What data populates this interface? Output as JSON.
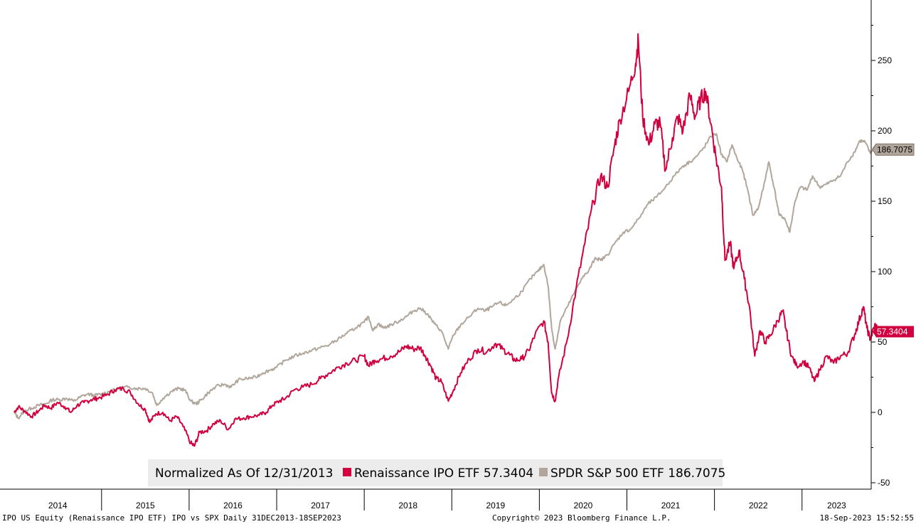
{
  "chart_data": {
    "type": "line",
    "title": "",
    "xlabel": "",
    "ylabel": "",
    "x_range": [
      "2013-12-31",
      "2023-09-18"
    ],
    "ylim": [
      -50,
      280
    ],
    "yticks": [
      -50,
      0,
      50,
      100,
      150,
      200,
      250
    ],
    "year_labels": [
      "2014",
      "2015",
      "2016",
      "2017",
      "2018",
      "2019",
      "2020",
      "2021",
      "2022",
      "2023"
    ],
    "legend": {
      "prefix": "Normalized As Of 12/31/2013",
      "placement": "bottom-center"
    },
    "series": [
      {
        "name": "Renaissance IPO ETF",
        "last_value": "57.3404",
        "color": "#d1003f",
        "points": [
          [
            2014.0,
            0
          ],
          [
            2014.05,
            4
          ],
          [
            2014.12,
            1
          ],
          [
            2014.2,
            -3
          ],
          [
            2014.28,
            1
          ],
          [
            2014.35,
            5
          ],
          [
            2014.42,
            3
          ],
          [
            2014.5,
            7
          ],
          [
            2014.58,
            4
          ],
          [
            2014.65,
            0
          ],
          [
            2014.72,
            5
          ],
          [
            2014.8,
            7
          ],
          [
            2014.88,
            9
          ],
          [
            2014.95,
            10
          ],
          [
            2015.05,
            12
          ],
          [
            2015.15,
            16
          ],
          [
            2015.25,
            17
          ],
          [
            2015.33,
            14
          ],
          [
            2015.42,
            6
          ],
          [
            2015.5,
            2
          ],
          [
            2015.55,
            -7
          ],
          [
            2015.62,
            -1
          ],
          [
            2015.7,
            0
          ],
          [
            2015.78,
            -6
          ],
          [
            2015.86,
            -3
          ],
          [
            2015.93,
            -10
          ],
          [
            2016.02,
            -22
          ],
          [
            2016.06,
            -24
          ],
          [
            2016.12,
            -14
          ],
          [
            2016.2,
            -13
          ],
          [
            2016.28,
            -8
          ],
          [
            2016.36,
            -6
          ],
          [
            2016.45,
            -12
          ],
          [
            2016.52,
            -5
          ],
          [
            2016.62,
            -4
          ],
          [
            2016.7,
            -3
          ],
          [
            2016.8,
            -2
          ],
          [
            2016.88,
            0
          ],
          [
            2016.95,
            5
          ],
          [
            2017.03,
            8
          ],
          [
            2017.1,
            10
          ],
          [
            2017.2,
            16
          ],
          [
            2017.3,
            18
          ],
          [
            2017.4,
            20
          ],
          [
            2017.5,
            24
          ],
          [
            2017.6,
            28
          ],
          [
            2017.7,
            32
          ],
          [
            2017.8,
            35
          ],
          [
            2017.9,
            37
          ],
          [
            2018.0,
            40
          ],
          [
            2018.05,
            33
          ],
          [
            2018.12,
            37
          ],
          [
            2018.2,
            38
          ],
          [
            2018.3,
            40
          ],
          [
            2018.4,
            43
          ],
          [
            2018.48,
            47
          ],
          [
            2018.56,
            45
          ],
          [
            2018.64,
            46
          ],
          [
            2018.7,
            40
          ],
          [
            2018.76,
            33
          ],
          [
            2018.82,
            24
          ],
          [
            2018.88,
            22
          ],
          [
            2018.96,
            8
          ],
          [
            2019.02,
            16
          ],
          [
            2019.1,
            28
          ],
          [
            2019.2,
            38
          ],
          [
            2019.3,
            45
          ],
          [
            2019.4,
            43
          ],
          [
            2019.5,
            49
          ],
          [
            2019.58,
            45
          ],
          [
            2019.66,
            41
          ],
          [
            2019.72,
            37
          ],
          [
            2019.8,
            38
          ],
          [
            2019.88,
            44
          ],
          [
            2019.95,
            55
          ],
          [
            2020.05,
            65
          ],
          [
            2020.1,
            50
          ],
          [
            2020.14,
            14
          ],
          [
            2020.18,
            8
          ],
          [
            2020.22,
            25
          ],
          [
            2020.32,
            52
          ],
          [
            2020.42,
            88
          ],
          [
            2020.52,
            120
          ],
          [
            2020.62,
            150
          ],
          [
            2020.7,
            168
          ],
          [
            2020.78,
            160
          ],
          [
            2020.86,
            190
          ],
          [
            2020.92,
            208
          ],
          [
            2021.02,
            228
          ],
          [
            2021.1,
            248
          ],
          [
            2021.13,
            265
          ],
          [
            2021.18,
            210
          ],
          [
            2021.25,
            190
          ],
          [
            2021.32,
            205
          ],
          [
            2021.38,
            205
          ],
          [
            2021.44,
            172
          ],
          [
            2021.52,
            195
          ],
          [
            2021.58,
            210
          ],
          [
            2021.64,
            200
          ],
          [
            2021.72,
            225
          ],
          [
            2021.78,
            210
          ],
          [
            2021.84,
            222
          ],
          [
            2021.9,
            228
          ],
          [
            2021.96,
            205
          ],
          [
            2022.02,
            180
          ],
          [
            2022.08,
            160
          ],
          [
            2022.12,
            108
          ],
          [
            2022.18,
            120
          ],
          [
            2022.22,
            102
          ],
          [
            2022.28,
            115
          ],
          [
            2022.34,
            95
          ],
          [
            2022.4,
            75
          ],
          [
            2022.46,
            40
          ],
          [
            2022.52,
            58
          ],
          [
            2022.58,
            50
          ],
          [
            2022.64,
            55
          ],
          [
            2022.72,
            65
          ],
          [
            2022.78,
            72
          ],
          [
            2022.82,
            58
          ],
          [
            2022.88,
            40
          ],
          [
            2022.94,
            33
          ],
          [
            2023.02,
            36
          ],
          [
            2023.08,
            32
          ],
          [
            2023.14,
            22
          ],
          [
            2023.2,
            30
          ],
          [
            2023.28,
            40
          ],
          [
            2023.36,
            35
          ],
          [
            2023.44,
            40
          ],
          [
            2023.52,
            42
          ],
          [
            2023.6,
            55
          ],
          [
            2023.65,
            65
          ],
          [
            2023.7,
            75
          ],
          [
            2023.74,
            60
          ],
          [
            2023.78,
            52
          ],
          [
            2023.83,
            62
          ],
          [
            2023.86,
            60
          ],
          [
            2023.88,
            57.34
          ]
        ]
      },
      {
        "name": "SPDR S&P 500 ETF",
        "last_value": "186.7075",
        "color": "#b1a69b",
        "points": [
          [
            2014.0,
            0
          ],
          [
            2014.05,
            -4
          ],
          [
            2014.12,
            1
          ],
          [
            2014.2,
            3
          ],
          [
            2014.28,
            5
          ],
          [
            2014.36,
            6
          ],
          [
            2014.44,
            9
          ],
          [
            2014.52,
            9
          ],
          [
            2014.6,
            10
          ],
          [
            2014.68,
            8
          ],
          [
            2014.76,
            11
          ],
          [
            2014.84,
            13
          ],
          [
            2014.92,
            12
          ],
          [
            2015.0,
            13
          ],
          [
            2015.1,
            15
          ],
          [
            2015.2,
            17
          ],
          [
            2015.3,
            18
          ],
          [
            2015.4,
            17
          ],
          [
            2015.5,
            17
          ],
          [
            2015.58,
            14
          ],
          [
            2015.63,
            5
          ],
          [
            2015.7,
            10
          ],
          [
            2015.8,
            15
          ],
          [
            2015.88,
            17
          ],
          [
            2015.95,
            16
          ],
          [
            2016.02,
            8
          ],
          [
            2016.08,
            6
          ],
          [
            2016.14,
            9
          ],
          [
            2016.22,
            14
          ],
          [
            2016.3,
            18
          ],
          [
            2016.4,
            20
          ],
          [
            2016.48,
            18
          ],
          [
            2016.56,
            23
          ],
          [
            2016.66,
            24
          ],
          [
            2016.76,
            25
          ],
          [
            2016.84,
            28
          ],
          [
            2016.92,
            30
          ],
          [
            2017.0,
            32
          ],
          [
            2017.1,
            37
          ],
          [
            2017.2,
            40
          ],
          [
            2017.3,
            42
          ],
          [
            2017.4,
            44
          ],
          [
            2017.5,
            46
          ],
          [
            2017.6,
            48
          ],
          [
            2017.7,
            52
          ],
          [
            2017.8,
            56
          ],
          [
            2017.9,
            60
          ],
          [
            2018.0,
            64
          ],
          [
            2018.05,
            68
          ],
          [
            2018.1,
            58
          ],
          [
            2018.16,
            63
          ],
          [
            2018.22,
            60
          ],
          [
            2018.3,
            62
          ],
          [
            2018.4,
            65
          ],
          [
            2018.48,
            68
          ],
          [
            2018.56,
            72
          ],
          [
            2018.64,
            74
          ],
          [
            2018.72,
            70
          ],
          [
            2018.8,
            63
          ],
          [
            2018.88,
            58
          ],
          [
            2018.96,
            45
          ],
          [
            2019.02,
            55
          ],
          [
            2019.1,
            62
          ],
          [
            2019.2,
            68
          ],
          [
            2019.3,
            74
          ],
          [
            2019.38,
            72
          ],
          [
            2019.46,
            75
          ],
          [
            2019.54,
            78
          ],
          [
            2019.62,
            76
          ],
          [
            2019.7,
            80
          ],
          [
            2019.8,
            86
          ],
          [
            2019.9,
            95
          ],
          [
            2019.98,
            100
          ],
          [
            2020.05,
            105
          ],
          [
            2020.1,
            90
          ],
          [
            2020.14,
            60
          ],
          [
            2020.18,
            45
          ],
          [
            2020.24,
            65
          ],
          [
            2020.32,
            75
          ],
          [
            2020.4,
            85
          ],
          [
            2020.48,
            95
          ],
          [
            2020.56,
            100
          ],
          [
            2020.64,
            110
          ],
          [
            2020.7,
            108
          ],
          [
            2020.78,
            112
          ],
          [
            2020.86,
            120
          ],
          [
            2020.96,
            128
          ],
          [
            2021.04,
            130
          ],
          [
            2021.14,
            138
          ],
          [
            2021.24,
            148
          ],
          [
            2021.34,
            153
          ],
          [
            2021.44,
            160
          ],
          [
            2021.54,
            168
          ],
          [
            2021.64,
            175
          ],
          [
            2021.72,
            178
          ],
          [
            2021.8,
            182
          ],
          [
            2021.88,
            188
          ],
          [
            2021.96,
            196
          ],
          [
            2022.02,
            198
          ],
          [
            2022.08,
            183
          ],
          [
            2022.14,
            178
          ],
          [
            2022.2,
            190
          ],
          [
            2022.26,
            180
          ],
          [
            2022.32,
            172
          ],
          [
            2022.38,
            158
          ],
          [
            2022.44,
            140
          ],
          [
            2022.5,
            145
          ],
          [
            2022.56,
            160
          ],
          [
            2022.62,
            178
          ],
          [
            2022.68,
            160
          ],
          [
            2022.74,
            140
          ],
          [
            2022.8,
            138
          ],
          [
            2022.86,
            128
          ],
          [
            2022.92,
            150
          ],
          [
            2022.98,
            160
          ],
          [
            2023.06,
            158
          ],
          [
            2023.12,
            168
          ],
          [
            2023.2,
            160
          ],
          [
            2023.28,
            162
          ],
          [
            2023.36,
            165
          ],
          [
            2023.44,
            168
          ],
          [
            2023.52,
            178
          ],
          [
            2023.6,
            185
          ],
          [
            2023.66,
            193
          ],
          [
            2023.72,
            192
          ],
          [
            2023.78,
            184
          ],
          [
            2023.84,
            190
          ],
          [
            2023.88,
            186.71
          ]
        ]
      }
    ]
  },
  "footer": {
    "left": "IPO US Equity (Renaissance IPO ETF) IPO vs SPX  Daily 31DEC2013-18SEP2023",
    "center": "Copyright© 2023 Bloomberg Finance L.P.",
    "right": "18-Sep-2023 15:52:55"
  }
}
